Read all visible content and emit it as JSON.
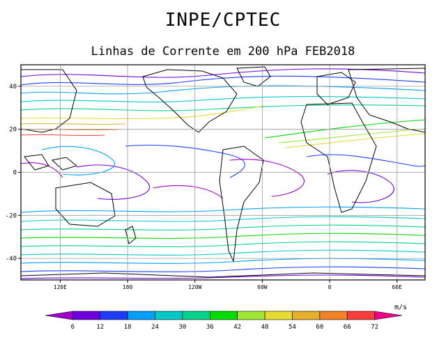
{
  "header": {
    "title": "INPE/CPTEC",
    "subtitle": "Linhas de Corrente em 200 hPa FEB2018"
  },
  "map": {
    "y_tick_labels": [
      "40",
      "20",
      "0",
      "-20",
      "-40"
    ],
    "x_tick_labels": [
      "120E",
      "180",
      "120W",
      "60W",
      "0",
      "60E"
    ],
    "lat_range": [
      -50,
      50
    ],
    "lon_start_east": 85,
    "grid_lat": [
      40,
      20,
      0,
      -20,
      -40
    ],
    "grid_lon_east": [
      120,
      180,
      240,
      300,
      360,
      420
    ]
  },
  "colorbar": {
    "units": "m/s",
    "labels": [
      "6",
      "12",
      "18",
      "24",
      "30",
      "36",
      "42",
      "48",
      "54",
      "60",
      "66",
      "72"
    ],
    "colors": [
      "#a000c8",
      "#6e00dc",
      "#1e3cff",
      "#00a0ff",
      "#00c8c8",
      "#00d28c",
      "#00dc00",
      "#a0e632",
      "#e6dc32",
      "#e6af2d",
      "#f08228",
      "#fa3c3c",
      "#f00082"
    ]
  }
}
